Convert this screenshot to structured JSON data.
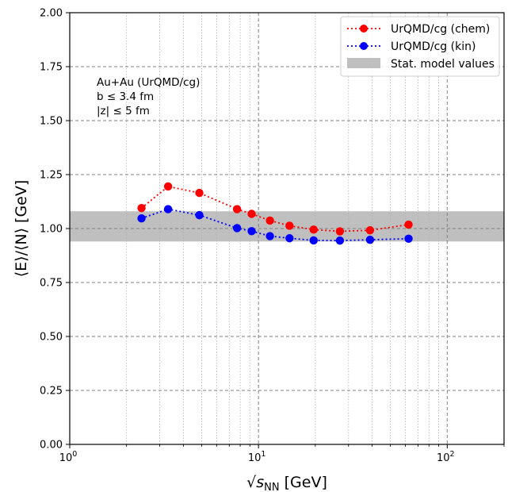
{
  "chart_data": {
    "type": "line",
    "xscale": "log",
    "xlim": [
      1,
      200
    ],
    "ylim": [
      0.0,
      2.0
    ],
    "xlabel_prefix": "√",
    "xlabel_sym": "s",
    "xlabel_sub": "NN",
    "xlabel_unit": " [GeV]",
    "ylabel": "⟨E⟩/⟨N⟩ [GeV]",
    "x_major_ticks": [
      {
        "value": 1,
        "base": "10",
        "exp": "0"
      },
      {
        "value": 10,
        "base": "10",
        "exp": "1"
      },
      {
        "value": 100,
        "base": "10",
        "exp": "2"
      }
    ],
    "y_ticks": [
      0.0,
      0.25,
      0.5,
      0.75,
      1.0,
      1.25,
      1.5,
      1.75,
      2.0
    ],
    "y_tick_labels": [
      "0.00",
      "0.25",
      "0.50",
      "0.75",
      "1.00",
      "1.25",
      "1.50",
      "1.75",
      "2.00"
    ],
    "grid": true,
    "legend_position": "top-right",
    "annotation": [
      "Au+Au (UrQMD/cg)",
      "b ≤ 3.4 fm",
      "|z| ≤ 5 fm"
    ],
    "band": {
      "name": "Stat. model values",
      "y_low": 0.94,
      "y_high": 1.08,
      "color": "#bfbfbf"
    },
    "series": [
      {
        "name": "UrQMD/cg (chem)",
        "color": "#ff0000",
        "x": [
          2.4,
          3.32,
          4.86,
          7.7,
          9.2,
          11.5,
          14.6,
          19.6,
          27,
          39,
          62.4
        ],
        "y": [
          1.095,
          1.195,
          1.165,
          1.09,
          1.068,
          1.037,
          1.013,
          0.995,
          0.987,
          0.992,
          1.018
        ]
      },
      {
        "name": "UrQMD/cg (kin)",
        "color": "#0000ff",
        "x": [
          2.4,
          3.32,
          4.86,
          7.7,
          9.2,
          11.5,
          14.6,
          19.6,
          27,
          39,
          62.4
        ],
        "y": [
          1.047,
          1.09,
          1.062,
          1.002,
          0.988,
          0.965,
          0.955,
          0.945,
          0.944,
          0.948,
          0.953
        ]
      }
    ]
  }
}
